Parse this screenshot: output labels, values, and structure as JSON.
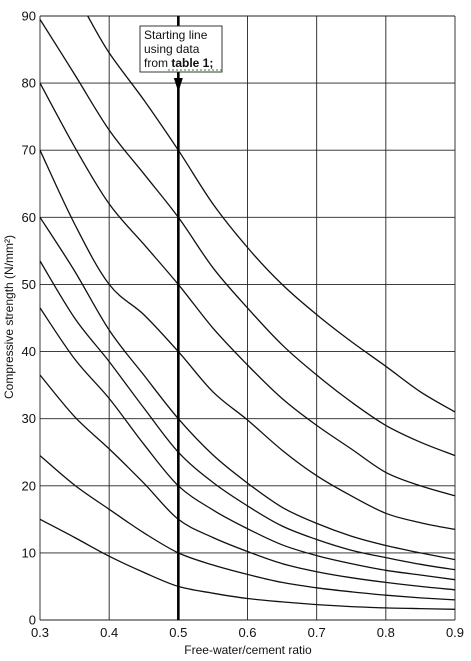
{
  "chart_data": {
    "type": "line",
    "title": "",
    "xlabel": "Free-water/cement ratio",
    "ylabel": "Compressive strength (N/mm²)",
    "xlim": [
      0.3,
      0.9
    ],
    "ylim": [
      0,
      90
    ],
    "xticks": [
      "0.3",
      "0.4",
      "0.5",
      "0.6",
      "0.7",
      "0.8",
      "0.9"
    ],
    "yticks": [
      "0",
      "10",
      "20",
      "30",
      "40",
      "50",
      "60",
      "70",
      "80",
      "90"
    ],
    "grid": true,
    "legend": "none",
    "reference_line": {
      "x": 0.5,
      "direction": "down"
    },
    "annotation": {
      "lines": [
        "Starting line",
        "using data"
      ],
      "prefix": "from ",
      "emphasis": "table 1;"
    },
    "x": [
      0.3,
      0.35,
      0.4,
      0.45,
      0.5,
      0.55,
      0.6,
      0.65,
      0.7,
      0.75,
      0.8,
      0.85,
      0.9
    ],
    "series": [
      {
        "values": [
          15.0,
          12.3,
          9.5,
          7.1,
          5.0,
          4.0,
          3.2,
          2.7,
          2.3,
          2.0,
          1.8,
          1.7,
          1.6
        ]
      },
      {
        "values": [
          24.5,
          20.1,
          16.5,
          13.0,
          10.0,
          8.2,
          6.8,
          5.6,
          4.8,
          4.2,
          3.7,
          3.3,
          3.0
        ]
      },
      {
        "values": [
          36.5,
          30.3,
          25.5,
          20.4,
          15.0,
          12.3,
          10.2,
          8.4,
          7.2,
          6.3,
          5.6,
          5.0,
          4.5
        ]
      },
      {
        "values": [
          46.5,
          38.9,
          33.0,
          26.2,
          20.0,
          16.4,
          13.6,
          11.2,
          9.6,
          8.4,
          7.4,
          6.7,
          6.0
        ]
      },
      {
        "values": [
          53.5,
          45.0,
          38.5,
          31.6,
          25.0,
          20.5,
          17.0,
          14.0,
          12.0,
          10.4,
          9.3,
          8.3,
          7.5
        ]
      },
      {
        "values": [
          60.0,
          52.0,
          43.2,
          36.5,
          30.0,
          24.6,
          20.4,
          16.8,
          14.4,
          12.5,
          11.1,
          10.0,
          9.0
        ]
      },
      {
        "values": [
          70.0,
          59.0,
          50.0,
          45.5,
          40.0,
          34.0,
          29.8,
          25.3,
          21.5,
          18.5,
          15.9,
          14.5,
          13.5
        ]
      },
      {
        "values": [
          80.0,
          70.5,
          62.0,
          56.0,
          50.0,
          43.5,
          38.0,
          33.0,
          29.0,
          25.5,
          22.0,
          20.0,
          18.5
        ]
      },
      {
        "values": [
          89.5,
          81.3,
          73.0,
          66.5,
          60.0,
          52.5,
          46.5,
          41.0,
          36.5,
          32.5,
          29.0,
          26.5,
          24.5
        ]
      },
      {
        "x": [
          0.369,
          0.4,
          0.45,
          0.5,
          0.55,
          0.6,
          0.65,
          0.7,
          0.75,
          0.8,
          0.85,
          0.9
        ],
        "values": [
          90.0,
          84.5,
          77.5,
          70.0,
          62.0,
          55.5,
          50.0,
          45.5,
          41.5,
          37.8,
          34.0,
          31.0
        ]
      }
    ]
  }
}
